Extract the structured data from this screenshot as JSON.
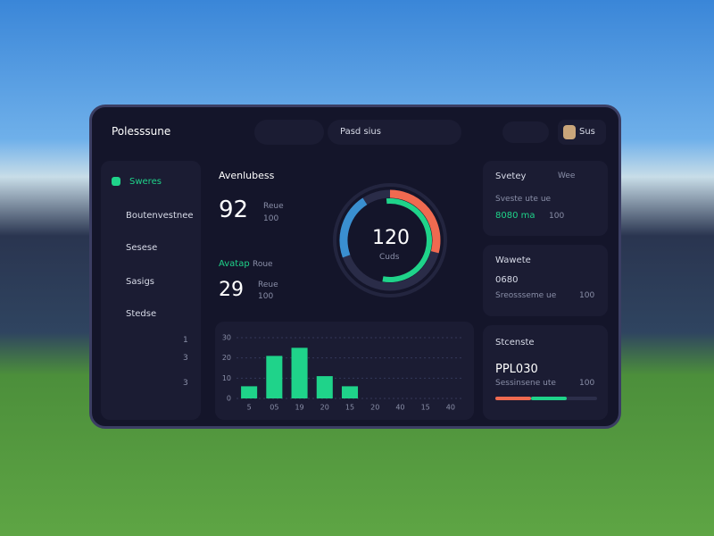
{
  "header": {
    "title": "Polesssune",
    "search": "Pasd sius",
    "user": "Sus"
  },
  "sidebar": {
    "items": [
      "Sweres",
      "Boutenvestnee",
      "Sesese",
      "Sasigs",
      "Stedse"
    ],
    "numbers": [
      "1",
      "3",
      "3"
    ]
  },
  "stats": {
    "title": "Avenlubess",
    "primary": {
      "value": "92",
      "label": "Reue",
      "sub": "100"
    },
    "secondary": {
      "label": "Avatap",
      "label2": "Roue",
      "value": "29",
      "sub": "Reue",
      "sub2": "100"
    }
  },
  "gauge": {
    "value": "120",
    "label": "Cuds"
  },
  "cards": [
    {
      "title": "Svetey",
      "tag": "Wee",
      "line": "Sveste ute ue",
      "stat": "8080 ma",
      "extra": "100"
    },
    {
      "title": "Wawete",
      "value": "0680",
      "line": "Sreossseme ue",
      "extra": "100"
    },
    {
      "title": "Stcenste",
      "value": "PPL030",
      "line": "Sessinsene ute",
      "extra": "100"
    }
  ],
  "chart_data": {
    "type": "bar",
    "categories": [
      "5",
      "05",
      "19",
      "20",
      "15",
      "20",
      "40",
      "15",
      "40"
    ],
    "values": [
      6,
      21,
      25,
      11,
      6,
      null,
      null,
      null,
      null
    ],
    "color": "#1fd38a",
    "ylim": [
      0,
      30
    ],
    "yticks": [
      0,
      10,
      20,
      30
    ],
    "grid": true
  }
}
